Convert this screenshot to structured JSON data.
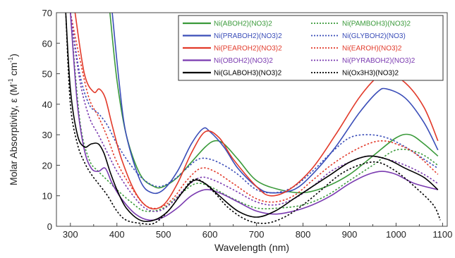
{
  "chart_data": {
    "type": "line",
    "title": "",
    "xlabel": "Wavelength (nm)",
    "ylabel_main": "Molar Absorptivity, ε (M",
    "ylabel_sup1": "-1",
    "ylabel_mid": " cm",
    "ylabel_sup2": "-1",
    "ylabel_end": ")",
    "xlim": [
      270,
      1110
    ],
    "ylim": [
      0,
      70
    ],
    "xticks": [
      300,
      400,
      500,
      600,
      700,
      800,
      900,
      1000,
      1100
    ],
    "xtick_labels": [
      "300",
      "400",
      "500",
      "600",
      "700",
      "800",
      "900",
      "1000",
      "1100"
    ],
    "yticks": [
      0,
      10,
      20,
      30,
      40,
      50,
      60,
      70
    ],
    "ytick_labels": [
      "0",
      "10",
      "20",
      "30",
      "40",
      "50",
      "60",
      "70"
    ],
    "grid": false,
    "legend_position": "top-right",
    "series": [
      {
        "name": "Ni(ABOH2)(NO3)2",
        "color": "#3a9a3a",
        "dash": "solid",
        "x": [
          385,
          400,
          420,
          450,
          480,
          500,
          530,
          560,
          590,
          610,
          630,
          660,
          700,
          750,
          800,
          850,
          900,
          950,
          1000,
          1030,
          1060,
          1090
        ],
        "y": [
          70,
          48,
          30,
          17,
          13,
          13,
          16,
          21,
          26,
          28,
          27,
          22,
          15,
          12,
          11,
          13,
          17,
          23,
          29,
          30,
          27,
          23
        ]
      },
      {
        "name": "Ni(PAMBOH3)(NO3)2",
        "color": "#3a9a3a",
        "dash": "dot",
        "x": [
          300,
          320,
          340,
          360,
          380,
          400,
          430,
          460,
          500,
          540,
          570,
          600,
          650,
          700,
          750,
          800,
          850,
          900,
          950,
          1000,
          1050,
          1090
        ],
        "y": [
          70,
          35,
          22,
          18,
          15,
          12,
          8,
          5,
          6,
          11,
          14,
          13,
          9,
          6,
          6,
          7,
          10,
          15,
          20,
          25,
          24,
          20
        ]
      },
      {
        "name": "Ni(PRABOH2)(NO3)2",
        "color": "#3a4db8",
        "dash": "solid",
        "x": [
          390,
          405,
          420,
          450,
          475,
          500,
          530,
          560,
          585,
          600,
          630,
          660,
          700,
          730,
          780,
          820,
          870,
          920,
          960,
          980,
          1020,
          1060,
          1090
        ],
        "y": [
          70,
          47,
          30,
          15,
          11,
          12,
          18,
          27,
          32,
          31,
          26,
          19,
          13,
          11,
          12,
          17,
          26,
          37,
          44,
          45,
          42,
          34,
          25
        ]
      },
      {
        "name": "Ni(GLYBOH2)(NO3)",
        "color": "#3a4db8",
        "dash": "dot",
        "x": [
          300,
          320,
          340,
          360,
          380,
          400,
          430,
          460,
          490,
          520,
          550,
          575,
          600,
          630,
          660,
          700,
          740,
          780,
          820,
          860,
          900,
          940,
          980,
          1020,
          1060,
          1090
        ],
        "y": [
          70,
          50,
          40,
          37,
          33,
          27,
          20,
          15,
          13,
          15,
          19,
          22,
          22,
          20,
          17,
          12,
          11,
          13,
          18,
          24,
          29,
          30,
          29,
          26,
          22,
          19
        ]
      },
      {
        "name": "Ni(PEAROH2)(NO3)2",
        "color": "#e23a2a",
        "dash": "solid",
        "x": [
          310,
          330,
          350,
          362,
          375,
          390,
          410,
          440,
          470,
          500,
          530,
          560,
          590,
          620,
          650,
          700,
          730,
          770,
          820,
          870,
          920,
          960,
          980,
          1020,
          1060,
          1090
        ],
        "y": [
          70,
          50,
          44,
          45,
          42,
          33,
          22,
          11,
          6,
          7,
          14,
          24,
          31,
          29,
          22,
          13,
          10,
          12,
          19,
          30,
          42,
          49,
          50,
          47,
          39,
          28
        ]
      },
      {
        "name": "Ni(EAROH)(NO3)2",
        "color": "#e23a2a",
        "dash": "dot",
        "x": [
          300,
          320,
          340,
          360,
          380,
          400,
          430,
          460,
          490,
          520,
          550,
          580,
          610,
          650,
          700,
          740,
          780,
          820,
          860,
          900,
          940,
          970,
          1000,
          1040,
          1090
        ],
        "y": [
          70,
          55,
          42,
          36,
          29,
          21,
          13,
          7,
          6,
          9,
          15,
          19,
          18,
          14,
          9,
          8,
          10,
          15,
          20,
          24,
          27,
          28,
          27,
          24,
          17
        ]
      },
      {
        "name": "Ni(OBOH2)(NO3)2",
        "color": "#7a3ab0",
        "dash": "solid",
        "x": [
          300,
          315,
          330,
          345,
          360,
          375,
          390,
          410,
          440,
          470,
          500,
          530,
          560,
          590,
          620,
          660,
          700,
          740,
          780,
          820,
          860,
          900,
          940,
          970,
          1000,
          1040,
          1090
        ],
        "y": [
          70,
          40,
          25,
          19,
          18,
          19,
          14,
          9,
          4,
          2,
          3,
          6,
          10,
          12,
          11,
          8,
          5,
          4,
          5,
          7,
          10,
          14,
          17,
          18,
          17,
          14,
          12
        ]
      },
      {
        "name": "Ni(PYRABOH2)(NO3)2",
        "color": "#7a3ab0",
        "dash": "dot",
        "x": [
          300,
          320,
          340,
          360,
          380,
          400,
          430,
          460,
          490,
          520,
          550,
          580,
          610,
          650,
          700,
          740,
          780,
          820,
          860,
          900,
          940,
          980,
          1020,
          1060,
          1090
        ],
        "y": [
          70,
          48,
          36,
          30,
          24,
          18,
          11,
          6,
          5,
          8,
          13,
          16,
          15,
          12,
          8,
          7,
          9,
          13,
          18,
          21,
          23,
          22,
          20,
          17,
          14
        ]
      },
      {
        "name": "Ni(GLABOH3)(NO3)2",
        "color": "#000000",
        "dash": "solid",
        "x": [
          290,
          300,
          315,
          330,
          345,
          360,
          372,
          385,
          400,
          420,
          450,
          480,
          510,
          540,
          565,
          590,
          620,
          660,
          700,
          740,
          780,
          820,
          860,
          900,
          940,
          980,
          1020,
          1060,
          1090
        ],
        "y": [
          70,
          45,
          30,
          26,
          27,
          27,
          24,
          18,
          12,
          6,
          2,
          2,
          5,
          11,
          15,
          14,
          10,
          5,
          3,
          5,
          9,
          13,
          17,
          21,
          23,
          22,
          19,
          16,
          12
        ]
      },
      {
        "name": "Ni(Ox3H3)(NO3)2",
        "color": "#000000",
        "dash": "dot",
        "x": [
          290,
          300,
          315,
          330,
          345,
          360,
          380,
          400,
          420,
          450,
          480,
          510,
          540,
          560,
          580,
          610,
          640,
          680,
          720,
          760,
          800,
          840,
          880,
          920,
          960,
          1000,
          1040,
          1080,
          1095
        ],
        "y": [
          70,
          40,
          27,
          21,
          17,
          14,
          10,
          5,
          2,
          1,
          1,
          5,
          11,
          15,
          15,
          11,
          6,
          2,
          1,
          3,
          7,
          12,
          17,
          20,
          21,
          18,
          13,
          7,
          2
        ]
      }
    ]
  }
}
